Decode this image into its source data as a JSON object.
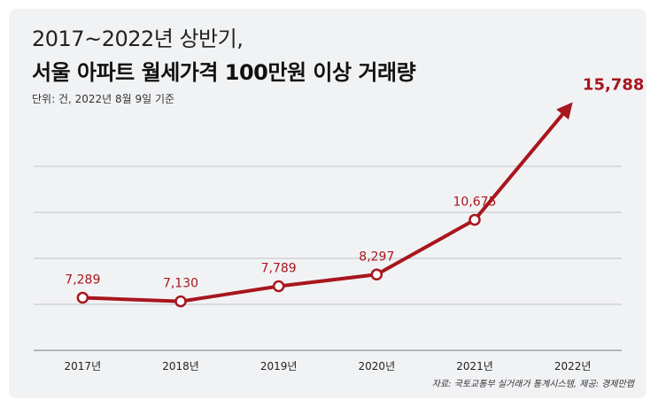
{
  "title": {
    "line1": "2017~2022년 상반기,",
    "line2": "서울 아파트 월세가격 100만원 이상 거래량"
  },
  "unit_note": "단위: 건, 2022년 8월 9일 기준",
  "source_note": "자료: 국토교통부 실거래가 통계시스템, 제공: 경제만랩",
  "colors": {
    "accent": "#a8161e",
    "background": "#f1f2f4",
    "grid": "#bfc3c8"
  },
  "chart_data": {
    "type": "line",
    "categories": [
      "2017년",
      "2018년",
      "2019년",
      "2020년",
      "2021년",
      "2022년"
    ],
    "series": [
      {
        "values": [
          7289,
          7130,
          7789,
          8297,
          10675,
          15788
        ],
        "labels": [
          "7,289",
          "7,130",
          "7,789",
          "8,297",
          "10,675",
          "15,788"
        ]
      }
    ],
    "ylim": [
      5000,
      16000
    ],
    "grid": true,
    "last_point_arrow": true
  }
}
